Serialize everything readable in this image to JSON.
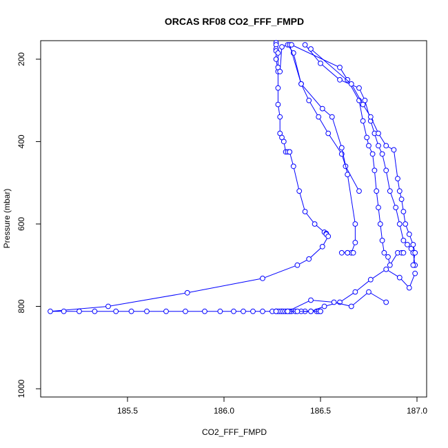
{
  "chart_data": {
    "type": "line",
    "title": "ORCAS RF08 CO2_FFF_FMPD",
    "xlabel": "CO2_FFF_FMPD",
    "ylabel": "Pressure (mbar)",
    "xlim": [
      185.05,
      187.05
    ],
    "ylim": [
      1020,
      155
    ],
    "y_inverted": true,
    "x_ticks": [
      "185.5",
      "186.0",
      "186.5",
      "187.0"
    ],
    "x_tick_values": [
      185.5,
      186.0,
      186.5,
      187.0
    ],
    "y_ticks": [
      "200",
      "400",
      "600",
      "800",
      "1000"
    ],
    "y_tick_values": [
      200,
      400,
      600,
      800,
      1000
    ],
    "marker": "open-circle",
    "line_color": "#0000ff",
    "grid": false,
    "legend": "none",
    "series": [
      {
        "x": [
          186.27,
          186.27,
          186.28,
          186.28,
          186.28,
          186.29,
          186.29,
          186.3,
          186.31,
          186.32,
          186.33,
          186.34,
          186.34,
          186.36,
          186.39,
          186.42,
          186.47,
          186.52,
          186.53,
          186.53,
          186.54,
          186.51,
          186.44,
          186.38,
          186.2,
          185.81,
          185.4,
          185.1,
          185.17,
          185.25,
          185.33,
          185.44,
          185.52,
          185.6,
          185.7,
          185.8,
          185.9,
          185.98,
          186.05,
          186.1,
          186.15,
          186.2,
          186.25,
          186.3,
          186.35,
          186.42,
          186.48,
          186.49,
          186.5
        ],
        "y": [
          160,
          200,
          230,
          270,
          310,
          340,
          380,
          390,
          400,
          425,
          425,
          425,
          425,
          460,
          520,
          570,
          600,
          620,
          623,
          625,
          630,
          655,
          685,
          700,
          732,
          767,
          800,
          812,
          812,
          812,
          812,
          812,
          812,
          812,
          812,
          812,
          812,
          812,
          812,
          812,
          812,
          812,
          812,
          812,
          812,
          812,
          812,
          812,
          812
        ]
      },
      {
        "x": [
          186.5,
          186.45,
          186.4,
          186.37,
          186.34,
          186.32,
          186.31,
          186.3,
          186.29,
          186.28,
          186.27,
          186.27,
          186.27
        ],
        "y": [
          812,
          812,
          812,
          812,
          812,
          812,
          812,
          812,
          812,
          812,
          812,
          812,
          812
        ]
      },
      {
        "x": [
          186.27,
          186.27,
          186.27,
          186.28,
          186.28,
          186.29,
          186.3,
          186.33,
          186.36,
          186.4,
          186.44,
          186.49,
          186.54,
          186.61,
          186.63,
          186.7
        ],
        "y": [
          165,
          175,
          180,
          185,
          220,
          230,
          170,
          165,
          185,
          260,
          300,
          340,
          380,
          430,
          460,
          520
        ]
      },
      {
        "x": [
          186.34,
          186.4,
          186.51,
          186.56,
          186.61,
          186.64,
          186.68,
          186.68,
          186.66,
          186.64,
          186.61,
          186.67,
          186.64
        ],
        "y": [
          165,
          260,
          320,
          340,
          415,
          480,
          600,
          645,
          670,
          670,
          670,
          670,
          670
        ]
      },
      {
        "x": [
          186.35,
          186.6,
          186.64,
          186.7,
          186.72,
          186.74,
          186.75,
          186.77,
          186.78,
          186.79,
          186.8,
          186.81,
          186.82,
          186.83,
          186.85,
          186.86,
          186.9,
          186.92,
          186.93
        ],
        "y": [
          165,
          220,
          250,
          300,
          350,
          390,
          410,
          430,
          470,
          520,
          560,
          600,
          640,
          670,
          680,
          700,
          670,
          670,
          670
        ]
      },
      {
        "x": [
          186.42,
          186.5,
          186.6,
          186.7,
          186.73,
          186.76,
          186.78,
          186.8,
          186.82,
          186.84,
          186.86,
          186.89,
          186.91,
          186.93,
          186.95,
          186.97,
          186.98,
          186.99
        ],
        "y": [
          165,
          210,
          250,
          270,
          300,
          350,
          380,
          410,
          430,
          470,
          520,
          560,
          600,
          640,
          650,
          660,
          670,
          700
        ]
      },
      {
        "x": [
          186.45,
          186.66,
          186.72,
          186.76,
          186.8,
          186.84,
          186.88,
          186.9,
          186.91,
          186.92,
          186.93,
          186.94,
          186.96,
          186.98,
          186.99,
          186.98
        ],
        "y": [
          175,
          260,
          310,
          340,
          380,
          410,
          420,
          490,
          520,
          540,
          570,
          600,
          625,
          650,
          670,
          700
        ]
      },
      {
        "x": [
          186.99,
          186.96,
          186.91,
          186.84,
          186.76,
          186.68,
          186.6,
          186.52,
          186.45,
          186.38,
          186.33
        ],
        "y": [
          720,
          755,
          730,
          710,
          735,
          765,
          790,
          800,
          812,
          812,
          812
        ]
      },
      {
        "x": [
          186.33,
          186.45,
          186.57,
          186.66,
          186.75,
          186.84
        ],
        "y": [
          812,
          785,
          790,
          800,
          765,
          790
        ]
      }
    ]
  }
}
